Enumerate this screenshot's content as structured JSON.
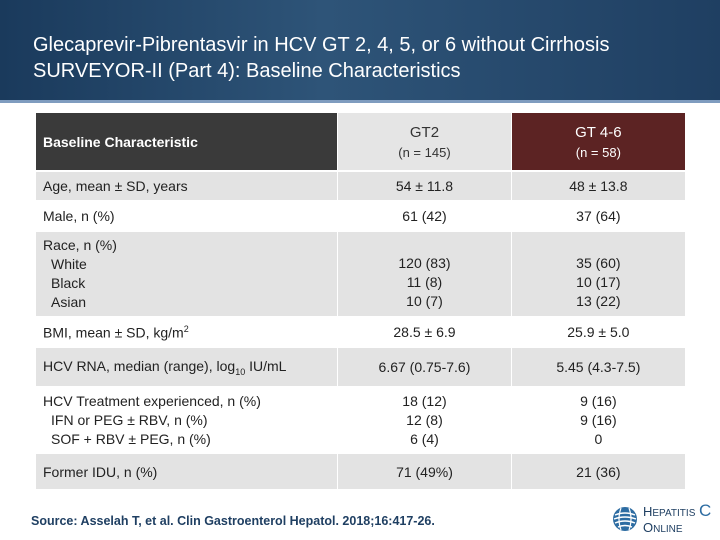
{
  "header": {
    "line1": "Glecaprevir-Pibrentasvir in HCV GT 2, 4, 5, or 6 without Cirrhosis",
    "line2": "SURVEYOR-II (Part 4): Baseline Characteristics"
  },
  "table": {
    "col0_header": "Baseline Characteristic",
    "col1_header": "GT2",
    "col1_sub": "(n = 145)",
    "col2_header": "GT 4-6",
    "col2_sub": "(n = 58)",
    "rows": [
      {
        "label": [
          "Age, mean ± SD, years"
        ],
        "gt2": [
          "54 ± 11.8"
        ],
        "gt46": [
          "48 ± 13.8"
        ]
      },
      {
        "label": [
          "Male, n (%)"
        ],
        "gt2": [
          "61 (42)"
        ],
        "gt46": [
          "37 (64)"
        ]
      },
      {
        "label": [
          "Race, n (%)",
          "White",
          "Black",
          "Asian"
        ],
        "gt2": [
          "120 (83)",
          "11 (8)",
          "10 (7)"
        ],
        "gt46": [
          "35 (60)",
          "10 (17)",
          "13 (22)"
        ]
      },
      {
        "label_main": "BMI, mean ± SD, kg/m",
        "label_sup": "2",
        "gt2": [
          "28.5 ± 6.9"
        ],
        "gt46": [
          "25.9 ± 5.0"
        ]
      },
      {
        "label_main": "HCV RNA, median (range), log",
        "label_sub": "10",
        "label_tail": " IU/mL",
        "gt2": [
          "6.67 (0.75-7.6)"
        ],
        "gt46": [
          "5.45 (4.3-7.5)"
        ]
      },
      {
        "label": [
          "HCV Treatment experienced, n (%)",
          "IFN or PEG ± RBV, n (%)",
          "SOF + RBV ± PEG, n (%)"
        ],
        "gt2": [
          "18 (12)",
          "12 (8)",
          "6 (4)"
        ],
        "gt46": [
          "9 (16)",
          "9 (16)",
          "0"
        ]
      },
      {
        "label": [
          "Former IDU, n (%)"
        ],
        "gt2": [
          "71 (49%)"
        ],
        "gt46": [
          "21 (36)"
        ]
      }
    ]
  },
  "source": "Source: Asselah T, et al. Clin Gastroenterol Hepatol. 2018;16:417-26.",
  "logo": {
    "word1_cap": "H",
    "word1_rest": "EPATITIS",
    "word1_letter": "C",
    "word2_cap": "O",
    "word2_rest": "NLINE"
  },
  "colors": {
    "header": "#1f3f62",
    "header_col_dark": "#3a3a3a",
    "header_col_gt46": "#5c2323",
    "row_shade": "#e3e3e3"
  }
}
